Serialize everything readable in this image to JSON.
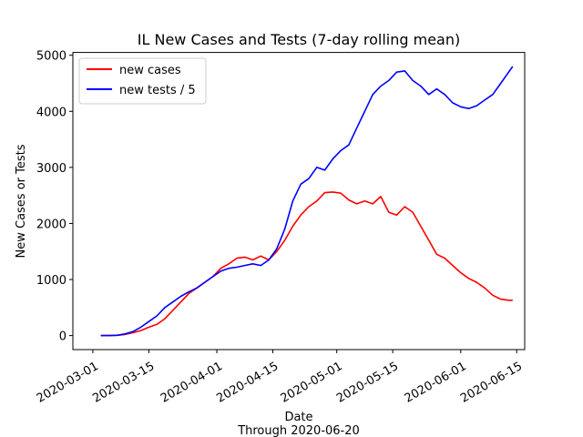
{
  "chart_data": {
    "type": "line",
    "title": "IL New Cases and Tests (7-day rolling mean)",
    "xlabel": "Date",
    "xlabel_sub": "Through 2020-06-20",
    "ylabel": "New Cases or Tests",
    "x_ticks": [
      "2020-03-01",
      "2020-03-15",
      "2020-04-01",
      "2020-04-15",
      "2020-05-01",
      "2020-05-15",
      "2020-06-01",
      "2020-06-15"
    ],
    "y_ticks": [
      0,
      1000,
      2000,
      3000,
      4000,
      5000
    ],
    "xlim": [
      "2020-02-25",
      "2020-06-17"
    ],
    "ylim": [
      -250,
      5050
    ],
    "legend_position": "top-left",
    "grid": false,
    "series": [
      {
        "name": "new cases",
        "color": "#ff0000",
        "x": [
          "2020-03-03",
          "2020-03-05",
          "2020-03-07",
          "2020-03-09",
          "2020-03-11",
          "2020-03-13",
          "2020-03-15",
          "2020-03-17",
          "2020-03-19",
          "2020-03-21",
          "2020-03-23",
          "2020-03-25",
          "2020-03-27",
          "2020-03-29",
          "2020-03-31",
          "2020-04-02",
          "2020-04-04",
          "2020-04-06",
          "2020-04-08",
          "2020-04-10",
          "2020-04-12",
          "2020-04-14",
          "2020-04-16",
          "2020-04-18",
          "2020-04-20",
          "2020-04-22",
          "2020-04-24",
          "2020-04-26",
          "2020-04-28",
          "2020-04-30",
          "2020-05-02",
          "2020-05-04",
          "2020-05-06",
          "2020-05-08",
          "2020-05-10",
          "2020-05-12",
          "2020-05-14",
          "2020-05-16",
          "2020-05-18",
          "2020-05-20",
          "2020-05-22",
          "2020-05-24",
          "2020-05-26",
          "2020-05-28",
          "2020-05-30",
          "2020-06-01",
          "2020-06-03",
          "2020-06-05",
          "2020-06-07",
          "2020-06-09",
          "2020-06-11",
          "2020-06-13",
          "2020-06-14"
        ],
        "values": [
          0,
          0,
          5,
          20,
          50,
          90,
          150,
          200,
          300,
          450,
          600,
          750,
          850,
          950,
          1050,
          1200,
          1280,
          1380,
          1400,
          1350,
          1420,
          1350,
          1500,
          1700,
          1950,
          2150,
          2300,
          2400,
          2550,
          2560,
          2540,
          2420,
          2350,
          2400,
          2350,
          2480,
          2200,
          2150,
          2300,
          2200,
          1950,
          1700,
          1450,
          1380,
          1250,
          1120,
          1020,
          950,
          850,
          720,
          650,
          630,
          630
        ]
      },
      {
        "name": "new tests / 5",
        "color": "#0000ff",
        "x": [
          "2020-03-03",
          "2020-03-05",
          "2020-03-07",
          "2020-03-09",
          "2020-03-11",
          "2020-03-13",
          "2020-03-15",
          "2020-03-17",
          "2020-03-19",
          "2020-03-21",
          "2020-03-23",
          "2020-03-25",
          "2020-03-27",
          "2020-03-29",
          "2020-03-31",
          "2020-04-02",
          "2020-04-04",
          "2020-04-06",
          "2020-04-08",
          "2020-04-10",
          "2020-04-12",
          "2020-04-14",
          "2020-04-16",
          "2020-04-18",
          "2020-04-20",
          "2020-04-22",
          "2020-04-24",
          "2020-04-26",
          "2020-04-28",
          "2020-04-30",
          "2020-05-02",
          "2020-05-04",
          "2020-05-06",
          "2020-05-08",
          "2020-05-10",
          "2020-05-12",
          "2020-05-14",
          "2020-05-16",
          "2020-05-18",
          "2020-05-20",
          "2020-05-22",
          "2020-05-24",
          "2020-05-26",
          "2020-05-28",
          "2020-05-30",
          "2020-06-01",
          "2020-06-03",
          "2020-06-05",
          "2020-06-07",
          "2020-06-09",
          "2020-06-11",
          "2020-06-13",
          "2020-06-14"
        ],
        "values": [
          0,
          0,
          5,
          30,
          70,
          150,
          250,
          350,
          500,
          600,
          700,
          780,
          850,
          950,
          1050,
          1150,
          1200,
          1220,
          1250,
          1280,
          1250,
          1350,
          1550,
          1900,
          2400,
          2700,
          2800,
          3000,
          2950,
          3150,
          3300,
          3400,
          3700,
          4000,
          4300,
          4450,
          4550,
          4700,
          4720,
          4550,
          4450,
          4300,
          4400,
          4300,
          4150,
          4080,
          4050,
          4100,
          4200,
          4300,
          4500,
          4700,
          4800
        ]
      }
    ]
  }
}
